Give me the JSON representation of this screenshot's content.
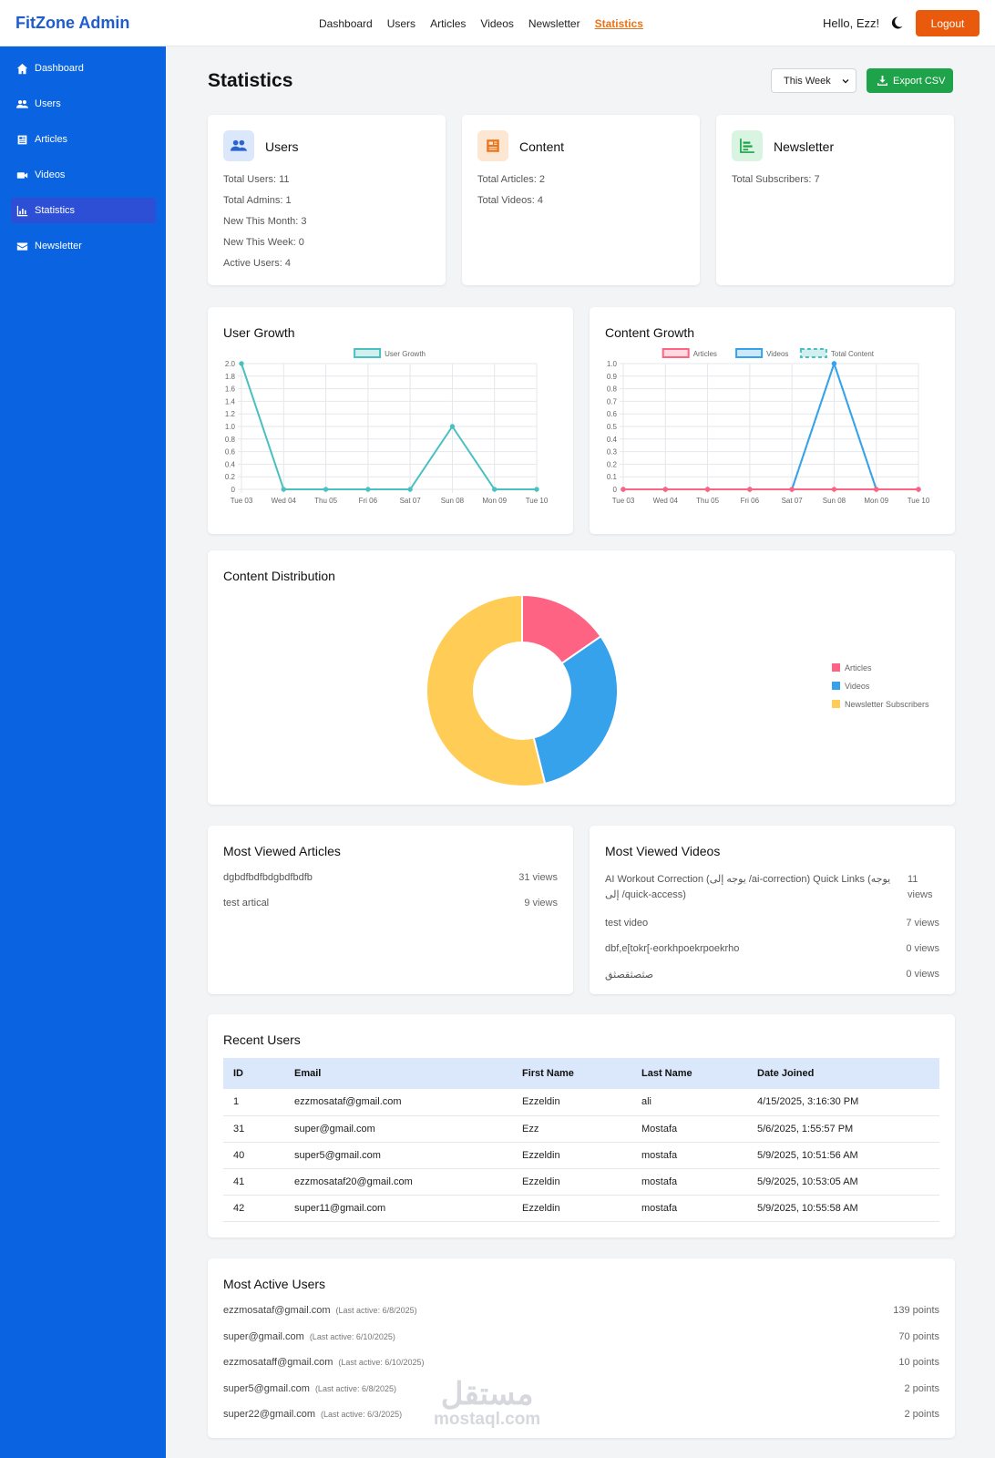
{
  "app": {
    "brand": "FitZone Admin",
    "greeting": "Hello, Ezz!",
    "logout_label": "Logout"
  },
  "topnav": [
    {
      "label": "Dashboard"
    },
    {
      "label": "Users"
    },
    {
      "label": "Articles"
    },
    {
      "label": "Videos"
    },
    {
      "label": "Newsletter"
    },
    {
      "label": "Statistics",
      "active": true
    }
  ],
  "sidebar": {
    "items": [
      {
        "label": "Dashboard",
        "icon": "home-icon"
      },
      {
        "label": "Users",
        "icon": "users-icon"
      },
      {
        "label": "Articles",
        "icon": "newspaper-icon"
      },
      {
        "label": "Videos",
        "icon": "video-icon"
      },
      {
        "label": "Statistics",
        "icon": "chart-icon",
        "active": true
      },
      {
        "label": "Newsletter",
        "icon": "envelope-icon"
      }
    ]
  },
  "header": {
    "title": "Statistics",
    "period": "This Week",
    "export_label": "Export CSV"
  },
  "stats": {
    "users": {
      "title": "Users",
      "lines": [
        "Total Users: 11",
        "Total Admins: 1",
        "New This Month: 3",
        "New This Week: 0",
        "Active Users: 4"
      ]
    },
    "content": {
      "title": "Content",
      "lines": [
        "Total Articles: 2",
        "Total Videos: 4"
      ]
    },
    "newsletter": {
      "title": "Newsletter",
      "lines": [
        "Total Subscribers: 7"
      ]
    }
  },
  "colors": {
    "accent": "#0a63e0",
    "teal": "#4bc0c0",
    "pink": "#ff6384",
    "blue": "#36a2eb",
    "yellow": "#ffcd56",
    "green": "#1fa34a",
    "orange": "#ea5a0c"
  },
  "chart_data": [
    {
      "type": "line",
      "title": "User Growth",
      "categories": [
        "Tue 03",
        "Wed 04",
        "Thu 05",
        "Fri 06",
        "Sat 07",
        "Sun 08",
        "Mon 09",
        "Tue 10"
      ],
      "series": [
        {
          "name": "User Growth",
          "values": [
            2,
            0,
            0,
            0,
            0,
            1,
            0,
            0
          ]
        }
      ],
      "ylim": [
        0,
        2
      ],
      "yticks": [
        "2.0",
        "1.8",
        "1.6",
        "1.4",
        "1.2",
        "1.0",
        "0.8",
        "0.6",
        "0.4",
        "0.2",
        "0"
      ],
      "grid": true,
      "legend": "top"
    },
    {
      "type": "line",
      "title": "Content Growth",
      "categories": [
        "Tue 03",
        "Wed 04",
        "Thu 05",
        "Fri 06",
        "Sat 07",
        "Sun 08",
        "Mon 09",
        "Tue 10"
      ],
      "series": [
        {
          "name": "Articles",
          "values": [
            0,
            0,
            0,
            0,
            0,
            0,
            0,
            0
          ]
        },
        {
          "name": "Videos",
          "values": [
            0,
            0,
            0,
            0,
            0,
            1,
            0,
            0
          ]
        },
        {
          "name": "Total Content",
          "values": [
            0,
            0,
            0,
            0,
            0,
            1,
            0,
            0
          ]
        }
      ],
      "ylim": [
        0,
        1
      ],
      "yticks": [
        "1.0",
        "0.9",
        "0.8",
        "0.7",
        "0.6",
        "0.5",
        "0.4",
        "0.3",
        "0.2",
        "0.1",
        "0"
      ],
      "grid": true,
      "legend": "top"
    },
    {
      "type": "pie",
      "title": "Content Distribution",
      "categories": [
        "Articles",
        "Videos",
        "Newsletter Subscribers"
      ],
      "values": [
        2,
        4,
        7
      ],
      "legend": "right"
    }
  ],
  "most_viewed_articles": {
    "title": "Most Viewed Articles",
    "items": [
      {
        "name": "dgbdfbdfbdgbdfbdfb",
        "views": "31 views"
      },
      {
        "name": "test artical",
        "views": "9 views"
      }
    ]
  },
  "most_viewed_videos": {
    "title": "Most Viewed Videos",
    "items": [
      {
        "name": "AI Workout Correction (يوجه إلى /ai-correction) Quick Links (يوجه إلى /quick-access)",
        "views": "11 views"
      },
      {
        "name": "test video",
        "views": "7 views"
      },
      {
        "name": "dbf,e[tokr[-eorkhpoekrpoekrho",
        "views": "0 views"
      },
      {
        "name": "صثصثقصثق",
        "views": "0 views"
      }
    ]
  },
  "recent_users": {
    "title": "Recent Users",
    "columns": [
      "ID",
      "Email",
      "First Name",
      "Last Name",
      "Date Joined"
    ],
    "rows": [
      [
        "1",
        "ezzmosataf@gmail.com",
        "Ezzeldin",
        "ali",
        "4/15/2025, 3:16:30 PM"
      ],
      [
        "31",
        "super@gmail.com",
        "Ezz",
        "Mostafa",
        "5/6/2025, 1:55:57 PM"
      ],
      [
        "40",
        "super5@gmail.com",
        "Ezzeldin",
        "mostafa",
        "5/9/2025, 10:51:56 AM"
      ],
      [
        "41",
        "ezzmosataf20@gmail.com",
        "Ezzeldin",
        "mostafa",
        "5/9/2025, 10:53:05 AM"
      ],
      [
        "42",
        "super11@gmail.com",
        "Ezzeldin",
        "mostafa",
        "5/9/2025, 10:55:58 AM"
      ]
    ]
  },
  "most_active_users": {
    "title": "Most Active Users",
    "items": [
      {
        "email": "ezzmosataf@gmail.com",
        "last_active": "(Last active: 6/8/2025)",
        "points": "139 points"
      },
      {
        "email": "super@gmail.com",
        "last_active": "(Last active: 6/10/2025)",
        "points": "70 points"
      },
      {
        "email": "ezzmosataff@gmail.com",
        "last_active": "(Last active: 6/10/2025)",
        "points": "10 points"
      },
      {
        "email": "super5@gmail.com",
        "last_active": "(Last active: 6/8/2025)",
        "points": "2 points"
      },
      {
        "email": "super22@gmail.com",
        "last_active": "(Last active: 6/3/2025)",
        "points": "2 points"
      }
    ]
  },
  "watermark": {
    "arabic": "مستقل",
    "latin": "mostaql.com"
  }
}
